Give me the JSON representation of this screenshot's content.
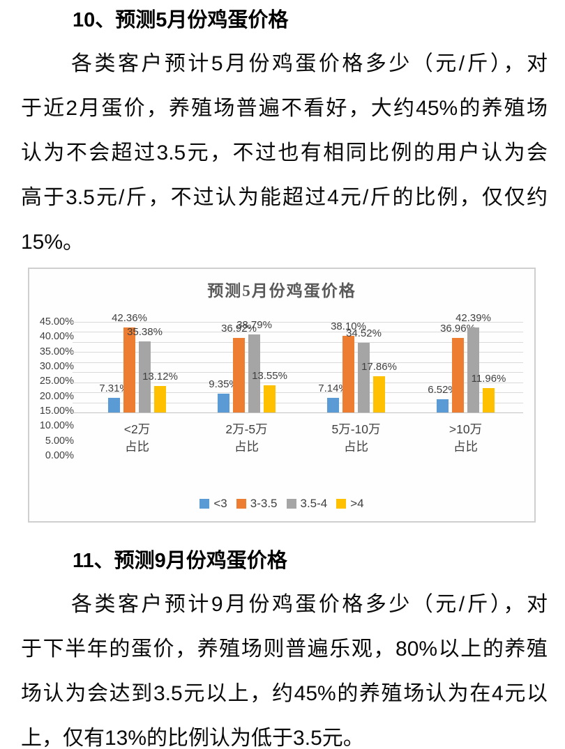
{
  "section10": {
    "heading": "10、预测5月份鸡蛋价格",
    "lines": [
      "各类客户预计5月份鸡蛋价格多少（元/斤），对",
      "于近2月蛋价，养殖场普遍不看好，大约45%的养殖场",
      "认为不会超过3.5元，不过也有相同比例的用户认为会",
      "高于3.5元/斤，不过认为能超过4元/斤的比例，仅仅约",
      "15%。"
    ]
  },
  "section11": {
    "heading": "11、预测9月份鸡蛋价格",
    "lines": [
      "各类客户预计9月份鸡蛋价格多少（元/斤），对",
      "于下半年的蛋价，养殖场则普遍乐观，80%以上的养殖",
      "场认为会达到3.5元以上，约45%的养殖场认为在4元以",
      "上，仅有13%的比例认为低于3.5元。"
    ]
  },
  "chart_data": {
    "type": "bar",
    "title": "预测5月份鸡蛋价格",
    "categories": [
      "<2万",
      "2万-5万",
      "5万-10万",
      ">10万"
    ],
    "category_sublabel": "占比",
    "series": [
      {
        "name": "<3",
        "color": "#5B9BD5",
        "values": [
          7.31,
          9.35,
          7.14,
          6.52
        ]
      },
      {
        "name": "3-3.5",
        "color": "#ED7D31",
        "values": [
          42.36,
          36.92,
          38.1,
          36.96
        ]
      },
      {
        "name": "3.5-4",
        "color": "#A5A5A5",
        "values": [
          35.38,
          38.79,
          34.52,
          42.39
        ]
      },
      {
        "name": ">4",
        "color": "#FFC000",
        "values": [
          13.12,
          13.55,
          17.86,
          11.96
        ]
      }
    ],
    "ylim": [
      0,
      45
    ],
    "y_ticks": [
      "45.00%",
      "40.00%",
      "35.00%",
      "30.00%",
      "25.00%",
      "20.00%",
      "15.00%",
      "10.00%",
      "5.00%",
      "0.00%"
    ],
    "grid": true,
    "legend_position": "bottom",
    "data_labels": true,
    "data_label_suffix": "%"
  }
}
